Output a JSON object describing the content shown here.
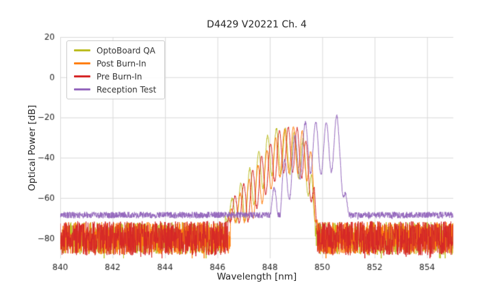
{
  "chart_data": {
    "type": "line",
    "title": "D4429 V20221 Ch. 4",
    "xlabel": "Wavelength [nm]",
    "ylabel": "Optical Power [dB]",
    "xlim": [
      840,
      855
    ],
    "ylim": [
      -90,
      20
    ],
    "xticks": [
      840,
      842,
      844,
      846,
      848,
      850,
      852,
      854
    ],
    "yticks": [
      20,
      0,
      -20,
      -40,
      -60,
      -80
    ],
    "grid": true,
    "grid_color": "#d9d9d9",
    "background": "#ffffff",
    "legend_position": "upper-left",
    "series": [
      {
        "name": "OptoBoard QA",
        "color": "#bcbd22",
        "seed": 101,
        "noise_floor_mean": -80,
        "noise_floor_amplitude": 8,
        "peak_envelope": [
          [
            846.3,
            -66
          ],
          [
            846.8,
            -55
          ],
          [
            847.2,
            -46
          ],
          [
            847.6,
            -36
          ],
          [
            848.0,
            -27
          ],
          [
            848.25,
            -25.5
          ],
          [
            848.7,
            -26
          ],
          [
            849.1,
            -28
          ],
          [
            849.4,
            -33
          ],
          [
            849.6,
            -48
          ],
          [
            849.72,
            -70
          ]
        ],
        "ripple_period": 0.34,
        "ripple_phase": 848.25,
        "ripple_max_depth": 22
      },
      {
        "name": "Post Burn-In",
        "color": "#ff7f0e",
        "seed": 202,
        "noise_floor_mean": -80,
        "noise_floor_amplitude": 8,
        "peak_envelope": [
          [
            846.5,
            -66
          ],
          [
            847.0,
            -55
          ],
          [
            847.5,
            -45
          ],
          [
            848.0,
            -34
          ],
          [
            848.5,
            -26
          ],
          [
            848.9,
            -24.5
          ],
          [
            849.2,
            -26
          ],
          [
            849.5,
            -31
          ],
          [
            849.7,
            -48
          ],
          [
            849.82,
            -72
          ]
        ],
        "ripple_period": 0.34,
        "ripple_phase": 848.9,
        "ripple_max_depth": 22
      },
      {
        "name": "Pre Burn-In",
        "color": "#d62728",
        "seed": 303,
        "noise_floor_mean": -80,
        "noise_floor_amplitude": 8.5,
        "peak_envelope": [
          [
            846.4,
            -64
          ],
          [
            846.9,
            -55
          ],
          [
            847.4,
            -45
          ],
          [
            847.9,
            -35
          ],
          [
            848.4,
            -26
          ],
          [
            848.7,
            -24.5
          ],
          [
            849.0,
            -25
          ],
          [
            849.3,
            -29
          ],
          [
            849.55,
            -38
          ],
          [
            849.7,
            -55
          ],
          [
            849.8,
            -78
          ]
        ],
        "ripple_period": 0.34,
        "ripple_phase": 848.7,
        "ripple_max_depth": 22
      },
      {
        "name": "Reception Test",
        "color": "#9467bd",
        "seed": 404,
        "noise_floor_mean": -68.5,
        "noise_floor_amplitude": 1.6,
        "peak_envelope": [
          [
            847.9,
            -64
          ],
          [
            848.3,
            -50
          ],
          [
            848.7,
            -36
          ],
          [
            849.1,
            -25
          ],
          [
            849.45,
            -21.5
          ],
          [
            849.8,
            -22
          ],
          [
            850.1,
            -23
          ],
          [
            850.35,
            -21
          ],
          [
            850.55,
            -19
          ],
          [
            850.7,
            -21
          ],
          [
            850.82,
            -40
          ],
          [
            850.92,
            -60
          ],
          [
            851.0,
            -67
          ]
        ],
        "ripple_period": 0.4,
        "ripple_phase": 850.55,
        "ripple_max_depth": 26
      }
    ]
  }
}
